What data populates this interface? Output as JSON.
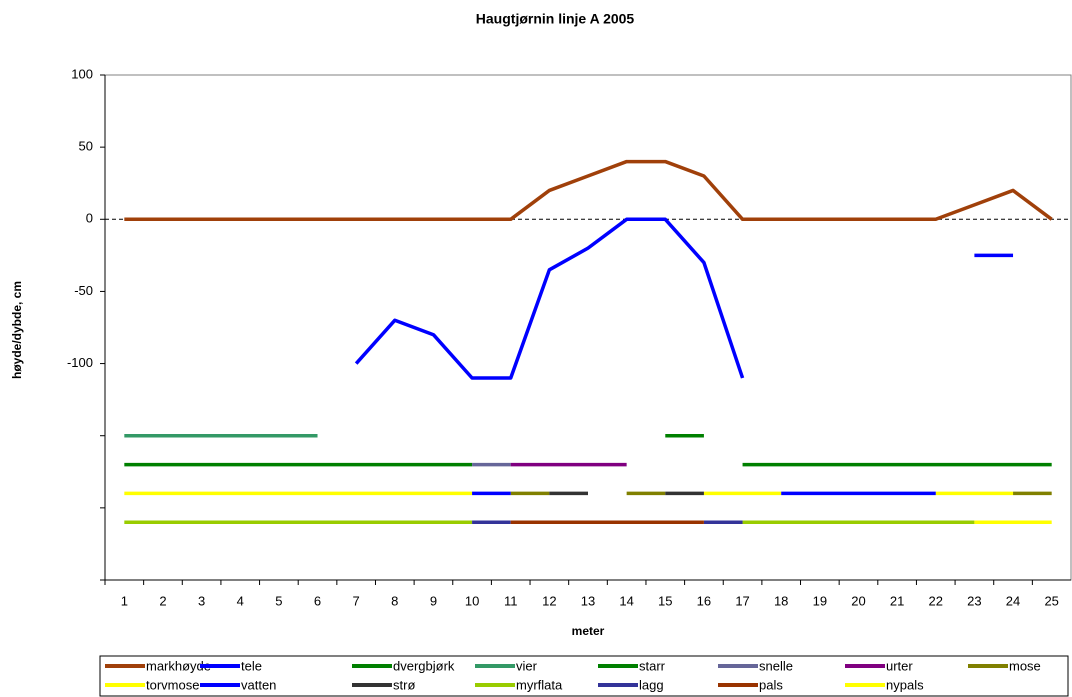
{
  "chart_data": {
    "type": "line",
    "title": "Haugtjørnin linje A 2005",
    "x_label": "meter",
    "y_label": "høyde/dybde, cm",
    "categories": [
      "1",
      "2",
      "3",
      "4",
      "5",
      "6",
      "7",
      "8",
      "9",
      "10",
      "11",
      "12",
      "13",
      "14",
      "15",
      "16",
      "17",
      "18",
      "19",
      "20",
      "21",
      "22",
      "23",
      "24",
      "25"
    ],
    "ylim": [
      -250,
      100
    ],
    "yticks": [
      {
        "value": -250,
        "label": null
      },
      {
        "value": -200,
        "label": null
      },
      {
        "value": -150,
        "label": null
      },
      -100,
      -50,
      0,
      50,
      100
    ],
    "series": [
      {
        "name": "markhøyde",
        "color": "#A0400A",
        "values": [
          0,
          0,
          0,
          0,
          0,
          0,
          0,
          0,
          0,
          0,
          0,
          20,
          30,
          40,
          40,
          30,
          0,
          0,
          0,
          0,
          0,
          0,
          10,
          20,
          0
        ]
      },
      {
        "name": "tele",
        "color": "#0000FF",
        "values": [
          null,
          null,
          null,
          null,
          null,
          null,
          -100,
          -70,
          -80,
          -110,
          -110,
          -35,
          -20,
          0,
          0,
          -30,
          -110,
          null,
          null,
          null,
          null,
          null,
          -25,
          -25,
          null
        ]
      },
      {
        "name": "dvergbjørk",
        "color": "#008000",
        "values": [
          -170,
          -170,
          -170,
          -170,
          -170,
          -170,
          -170,
          -170,
          -170,
          -170,
          null,
          null,
          null,
          null,
          null,
          null,
          -170,
          -170,
          -170,
          -170,
          -170,
          -170,
          -170,
          -170,
          -170
        ]
      },
      {
        "name": "vier",
        "color": "#339966",
        "values": [
          -150,
          -150,
          -150,
          -150,
          -150,
          -150,
          null,
          null,
          null,
          null,
          null,
          null,
          null,
          null,
          null,
          null,
          null,
          null,
          null,
          null,
          null,
          null,
          null,
          null,
          null
        ]
      },
      {
        "name": "starr",
        "color": "#008000",
        "values": [
          null,
          null,
          null,
          null,
          null,
          null,
          null,
          null,
          null,
          null,
          null,
          null,
          null,
          null,
          -150,
          -150,
          null,
          null,
          null,
          null,
          null,
          null,
          null,
          null,
          null
        ]
      },
      {
        "name": "snelle",
        "color": "#666699",
        "values": [
          null,
          null,
          null,
          null,
          null,
          null,
          null,
          null,
          null,
          -170,
          -170,
          null,
          null,
          null,
          null,
          null,
          null,
          null,
          null,
          null,
          null,
          null,
          null,
          null,
          null
        ]
      },
      {
        "name": "urter",
        "color": "#800080",
        "values": [
          null,
          null,
          null,
          null,
          null,
          null,
          null,
          null,
          null,
          null,
          -170,
          -170,
          -170,
          -170,
          null,
          null,
          null,
          null,
          null,
          null,
          null,
          null,
          null,
          null,
          null
        ]
      },
      {
        "name": "mose",
        "color": "#808000",
        "values": [
          null,
          null,
          null,
          null,
          null,
          null,
          null,
          null,
          null,
          null,
          -190,
          -190,
          null,
          -190,
          -190,
          null,
          null,
          null,
          null,
          null,
          null,
          null,
          null,
          -190,
          -190
        ]
      },
      {
        "name": "torvmose",
        "color": "#FFFF00",
        "values": [
          -190,
          -190,
          -190,
          -190,
          -190,
          -190,
          -190,
          -190,
          -190,
          -190,
          null,
          null,
          null,
          null,
          null,
          -190,
          -190,
          -190,
          null,
          null,
          null,
          -190,
          -190,
          -190,
          null
        ]
      },
      {
        "name": "vatten",
        "color": "#0000FF",
        "values": [
          null,
          null,
          null,
          null,
          null,
          null,
          null,
          null,
          null,
          -190,
          -190,
          null,
          null,
          null,
          null,
          null,
          null,
          -190,
          -190,
          -190,
          -190,
          -190,
          null,
          null,
          null
        ]
      },
      {
        "name": "strø",
        "color": "#333333",
        "values": [
          null,
          null,
          null,
          null,
          null,
          null,
          null,
          null,
          null,
          null,
          null,
          -190,
          -190,
          null,
          -190,
          -190,
          null,
          null,
          null,
          null,
          null,
          null,
          null,
          null,
          null
        ]
      },
      {
        "name": "myrflata",
        "color": "#99CC00",
        "values": [
          -210,
          -210,
          -210,
          -210,
          -210,
          -210,
          -210,
          -210,
          -210,
          -210,
          null,
          null,
          null,
          null,
          null,
          null,
          -210,
          -210,
          -210,
          -210,
          -210,
          -210,
          -210,
          null,
          null
        ]
      },
      {
        "name": "lagg",
        "color": "#333399",
        "values": [
          null,
          null,
          null,
          null,
          null,
          null,
          null,
          null,
          null,
          -210,
          -210,
          null,
          null,
          null,
          null,
          -210,
          -210,
          null,
          null,
          null,
          null,
          null,
          null,
          null,
          null
        ]
      },
      {
        "name": "pals",
        "color": "#993300",
        "values": [
          null,
          null,
          null,
          null,
          null,
          null,
          null,
          null,
          null,
          null,
          -210,
          -210,
          -210,
          -210,
          -210,
          -210,
          null,
          null,
          null,
          null,
          null,
          null,
          null,
          null,
          null
        ]
      },
      {
        "name": "nypals",
        "color": "#FFFF00",
        "values": [
          null,
          null,
          null,
          null,
          null,
          null,
          null,
          null,
          null,
          null,
          null,
          null,
          null,
          null,
          null,
          null,
          null,
          null,
          null,
          null,
          null,
          null,
          -210,
          -210,
          -210
        ]
      }
    ]
  }
}
